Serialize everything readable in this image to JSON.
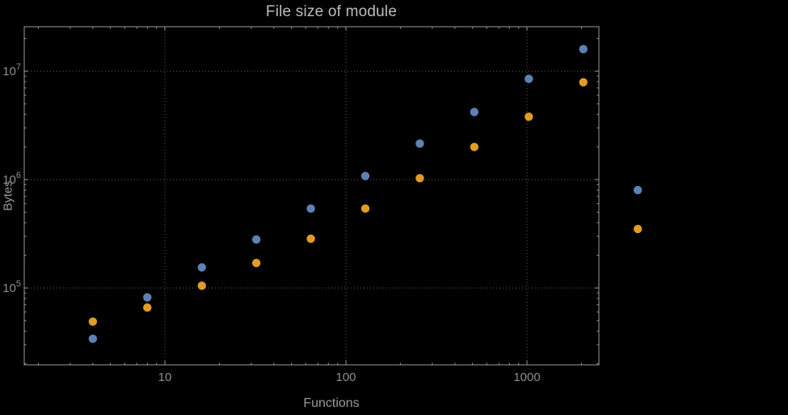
{
  "style": {
    "background": "#000000",
    "axis": "#9a9a9a",
    "grid": "#5f5f5f",
    "title_color": "#bdbdbd",
    "axis_label_color": "#9a9a9a",
    "tick_label_color": "#8f8f8f",
    "series_blue": "#5e81b5",
    "series_orange": "#e19c24"
  },
  "chart_data": {
    "type": "scatter",
    "title": "File size of module",
    "xlabel": "Functions",
    "ylabel": "Bytes",
    "x_scale": "log",
    "y_scale": "log",
    "grid": true,
    "legend": "none",
    "x_range_displayed": [
      2,
      2500
    ],
    "y_range_displayed": [
      20000,
      25000000
    ],
    "x_ticks": [
      {
        "value": 10,
        "label": "10"
      },
      {
        "value": 100,
        "label": "100"
      },
      {
        "value": 1000,
        "label": "1000"
      }
    ],
    "y_ticks": [
      {
        "value": 100000,
        "base": "10",
        "exponent": "5"
      },
      {
        "value": 1000000,
        "base": "10",
        "exponent": "6"
      },
      {
        "value": 10000000,
        "base": "10",
        "exponent": "7"
      }
    ],
    "series": [
      {
        "name": "blue",
        "color": "#5e81b5",
        "points": [
          [
            4,
            34000
          ],
          [
            8,
            82000
          ],
          [
            16,
            155000
          ],
          [
            32,
            280000
          ],
          [
            64,
            540000
          ],
          [
            128,
            1080000
          ],
          [
            256,
            2150000
          ],
          [
            512,
            4200000
          ],
          [
            1024,
            8500000
          ],
          [
            2048,
            16000000
          ],
          [
            4096,
            800000
          ]
        ]
      },
      {
        "name": "orange",
        "color": "#e19c24",
        "points": [
          [
            4,
            49000
          ],
          [
            8,
            66000
          ],
          [
            16,
            105000
          ],
          [
            32,
            170000
          ],
          [
            64,
            285000
          ],
          [
            128,
            540000
          ],
          [
            256,
            1030000
          ],
          [
            512,
            2000000
          ],
          [
            1024,
            3800000
          ],
          [
            2048,
            7900000
          ],
          [
            4096,
            350000
          ]
        ]
      }
    ]
  }
}
